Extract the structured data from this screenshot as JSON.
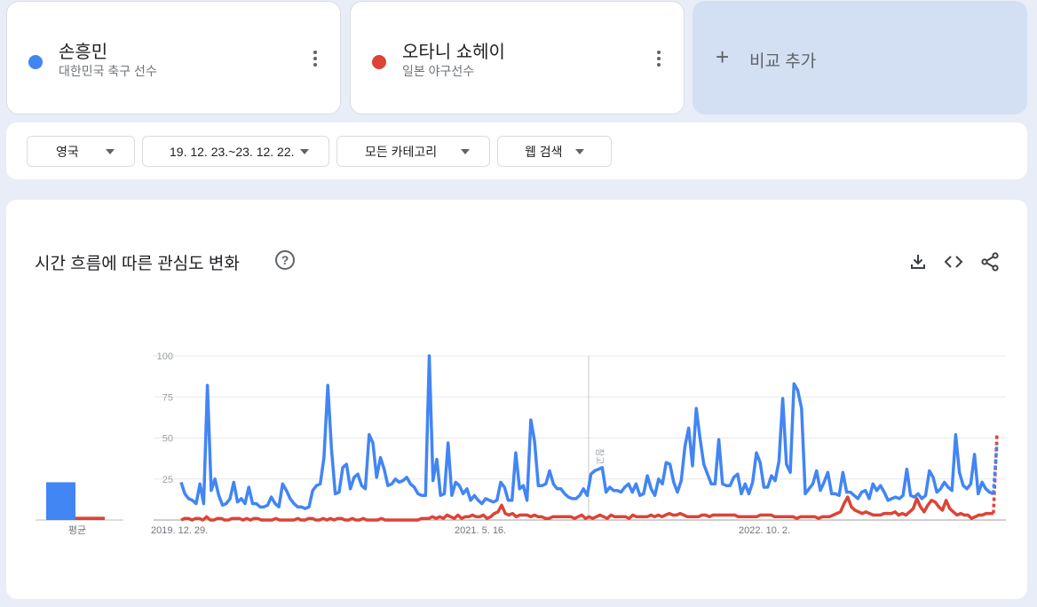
{
  "terms": [
    {
      "name": "손흥민",
      "subtitle": "대한민국 축구 선수",
      "color": "#4285f4"
    },
    {
      "name": "오타니 쇼헤이",
      "subtitle": "일본 야구선수",
      "color": "#db4437"
    }
  ],
  "add_compare": {
    "label": "비교 추가",
    "icon": "plus-icon"
  },
  "filters": {
    "region": "영국",
    "date_range": "19. 12. 23.~23. 12. 22.",
    "category": "모든 카테고리",
    "search_type": "웹 검색"
  },
  "chart_header": {
    "title": "시간 흐름에 따른 관심도 변화",
    "help_icon": "help-icon",
    "tools": [
      "download-icon",
      "embed-code-icon",
      "share-icon"
    ]
  },
  "chart_data": [
    {
      "type": "bar",
      "categories": [
        "평균"
      ],
      "series": [
        {
          "name": "손흥민",
          "values": [
            23
          ],
          "color": "#4285f4"
        },
        {
          "name": "오타니 쇼헤이",
          "values": [
            2
          ],
          "color": "#db4437"
        }
      ],
      "ylim": [
        0,
        100
      ]
    },
    {
      "type": "line",
      "ylim": [
        0,
        100
      ],
      "yticks": [
        25,
        50,
        75,
        100
      ],
      "xtick_labels": [
        "2019. 12. 29.",
        "2021. 5. 16.",
        "2022. 10. 2."
      ],
      "annotation": "참고",
      "grid": true,
      "series": [
        {
          "name": "손흥민",
          "color": "#4285f4",
          "values": [
            23,
            16,
            13,
            12,
            10,
            22,
            10,
            82,
            18,
            25,
            15,
            9,
            10,
            13,
            23,
            11,
            13,
            10,
            20,
            10,
            10,
            8,
            8,
            9,
            14,
            10,
            8,
            22,
            18,
            13,
            10,
            8,
            8,
            7,
            8,
            18,
            21,
            22,
            38,
            82,
            43,
            16,
            17,
            32,
            34,
            19,
            26,
            28,
            21,
            19,
            52,
            47,
            26,
            38,
            31,
            21,
            22,
            25,
            23,
            24,
            26,
            22,
            20,
            16,
            15,
            15,
            100,
            24,
            37,
            15,
            16,
            47,
            15,
            23,
            21,
            16,
            19,
            12,
            15,
            12,
            10,
            13,
            12,
            11,
            12,
            23,
            20,
            12,
            12,
            41,
            19,
            21,
            12,
            61,
            48,
            21,
            21,
            22,
            30,
            22,
            19,
            19,
            16,
            14,
            13,
            13,
            15,
            19,
            15,
            28,
            30,
            31,
            32,
            17,
            20,
            18,
            18,
            17,
            20,
            22,
            17,
            22,
            15,
            16,
            27,
            19,
            15,
            25,
            22,
            35,
            34,
            23,
            17,
            24,
            45,
            56,
            33,
            68,
            50,
            34,
            28,
            22,
            22,
            49,
            22,
            21,
            21,
            26,
            28,
            16,
            22,
            16,
            23,
            41,
            35,
            20,
            20,
            27,
            24,
            36,
            74,
            34,
            29,
            83,
            79,
            68,
            16,
            19,
            22,
            30,
            18,
            23,
            29,
            16,
            16,
            15,
            29,
            17,
            17,
            15,
            13,
            17,
            18,
            13,
            22,
            18,
            21,
            17,
            12,
            13,
            14,
            13,
            15,
            31,
            15,
            14,
            16,
            13,
            15,
            30,
            26,
            17,
            19,
            23,
            20,
            18,
            52,
            29,
            21,
            19,
            22,
            40,
            16,
            23,
            19,
            17,
            16,
            47
          ]
        },
        {
          "name": "오타니 쇼헤이",
          "color": "#db4437",
          "values": [
            0,
            1,
            1,
            0,
            1,
            1,
            0,
            2,
            0,
            0,
            1,
            1,
            0,
            0,
            1,
            1,
            1,
            0,
            1,
            0,
            1,
            1,
            0,
            0,
            0,
            0,
            1,
            0,
            0,
            0,
            0,
            0,
            1,
            0,
            0,
            1,
            1,
            0,
            0,
            1,
            0,
            1,
            0,
            1,
            1,
            0,
            0,
            1,
            0,
            0,
            1,
            0,
            0,
            0,
            0,
            1,
            0,
            0,
            0,
            0,
            0,
            0,
            0,
            0,
            0,
            0,
            1,
            1,
            1,
            2,
            1,
            2,
            1,
            3,
            2,
            1,
            3,
            1,
            2,
            2,
            3,
            2,
            2,
            3,
            1,
            2,
            4,
            5,
            9,
            4,
            3,
            4,
            2,
            3,
            3,
            3,
            2,
            3,
            2,
            2,
            1,
            1,
            2,
            2,
            2,
            2,
            2,
            2,
            1,
            2,
            3,
            1,
            2,
            1,
            2,
            3,
            2,
            1,
            3,
            2,
            2,
            2,
            2,
            1,
            3,
            2,
            2,
            2,
            2,
            3,
            2,
            3,
            2,
            3,
            4,
            3,
            3,
            4,
            3,
            2,
            2,
            2,
            2,
            3,
            3,
            2,
            3,
            3,
            3,
            3,
            3,
            3,
            3,
            2,
            2,
            2,
            2,
            2,
            2,
            3,
            3,
            3,
            3,
            2,
            2,
            2,
            2,
            2,
            2,
            1,
            2,
            2,
            2,
            2,
            2,
            1,
            2,
            2,
            2,
            3,
            4,
            5,
            10,
            14,
            8,
            6,
            5,
            4,
            5,
            4,
            3,
            3,
            3,
            4,
            4,
            4,
            5,
            3,
            4,
            3,
            5,
            7,
            13,
            8,
            5,
            9,
            12,
            11,
            8,
            6,
            12,
            7,
            5,
            3,
            4,
            3,
            3,
            1,
            2,
            3,
            3,
            4,
            4,
            4,
            53
          ]
        }
      ]
    }
  ]
}
